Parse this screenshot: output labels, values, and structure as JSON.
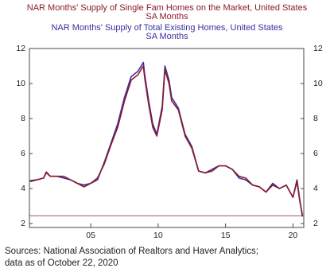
{
  "chart_data": {
    "type": "line",
    "title": "NAR Months' Supply of Single Fam Homes on the Market, United States",
    "source": [
      "Sources: National Association of Realtors and Haver Analytics;",
      "data as of October 22, 2020"
    ],
    "x": [
      2000.5,
      2001,
      2001.5,
      2001.7,
      2002,
      2002.5,
      2003,
      2003.5,
      2004,
      2004.5,
      2005,
      2005.5,
      2006,
      2006.5,
      2007,
      2007.5,
      2008,
      2008.5,
      2008.9,
      2009,
      2009.3,
      2009.6,
      2009.9,
      2010.3,
      2010.5,
      2010.8,
      2011,
      2011.5,
      2012,
      2012.5,
      2013,
      2013.5,
      2014,
      2014.5,
      2015,
      2015.5,
      2016,
      2016.5,
      2017,
      2017.5,
      2018,
      2018.5,
      2019,
      2019.5,
      2020,
      2020.3,
      2020.5,
      2020.7
    ],
    "series": [
      {
        "name": "NAR Months' Supply of Single Fam Homes on the Market, United States",
        "unit": "SA   Months",
        "color": "#8b1a2b",
        "values": [
          4.45,
          4.5,
          4.6,
          4.95,
          4.7,
          4.7,
          4.7,
          4.5,
          4.3,
          4.1,
          4.3,
          4.6,
          5.4,
          6.5,
          7.5,
          9.0,
          10.2,
          10.5,
          11.0,
          10.3,
          8.8,
          7.5,
          7.0,
          8.5,
          10.8,
          10.0,
          9.0,
          8.5,
          7.0,
          6.3,
          5.0,
          4.9,
          5.0,
          5.3,
          5.3,
          5.1,
          4.7,
          4.6,
          4.2,
          4.1,
          3.8,
          4.2,
          4.0,
          4.2,
          3.5,
          4.4,
          3.3,
          2.5
        ]
      },
      {
        "name": "NAR Months' Supply of Total Existing Homes, United States",
        "unit": "SA   Months",
        "color": "#3a2fa0",
        "values": [
          4.4,
          4.5,
          4.6,
          4.9,
          4.7,
          4.7,
          4.6,
          4.5,
          4.3,
          4.2,
          4.3,
          4.5,
          5.5,
          6.6,
          7.7,
          9.2,
          10.4,
          10.7,
          11.2,
          10.5,
          9.0,
          7.7,
          7.1,
          8.7,
          11.0,
          10.2,
          9.2,
          8.6,
          7.1,
          6.4,
          5.0,
          4.9,
          5.1,
          5.3,
          5.3,
          5.1,
          4.6,
          4.5,
          4.2,
          4.1,
          3.8,
          4.3,
          4.0,
          4.2,
          3.5,
          4.5,
          3.4,
          2.4
        ]
      }
    ],
    "reference_line": 2.45,
    "xlim": [
      2000.45,
      2020.8
    ],
    "xticks": [
      {
        "value": 2005,
        "label": "05"
      },
      {
        "value": 2010,
        "label": "10"
      },
      {
        "value": 2015,
        "label": "15"
      },
      {
        "value": 2020,
        "label": "20"
      }
    ],
    "ylim": [
      1.78,
      12
    ],
    "yticks": [
      2,
      4,
      6,
      8,
      10,
      12
    ],
    "grid": false
  }
}
